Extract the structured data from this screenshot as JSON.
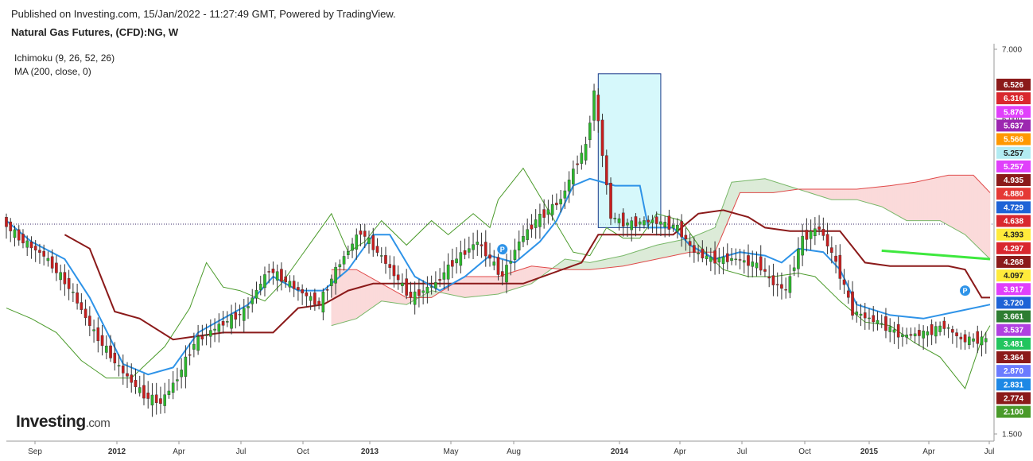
{
  "header": {
    "published": "Published on Investing.com, 15/Jan/2022 - 11:27:49 GMT, Powered by TradingView.",
    "title": "Natural Gas Futures, (CFD):NG, W"
  },
  "indicators": [
    "Ichimoku (9, 26, 52, 26)",
    "MA (200, close, 0)"
  ],
  "logo": {
    "brand": "Investing",
    "suffix": ".com"
  },
  "colors": {
    "up": "#2db82d",
    "down": "#c81e1e",
    "conversion": "#2e93e8",
    "base": "#8b1a1a",
    "lagging": "#4a9a2a",
    "cloud_bull": "#dcebd8",
    "cloud_bear": "#fbdada",
    "highlight": "#c8f6fa",
    "ma": "#3ee83e"
  },
  "chart_data": {
    "type": "candlestick",
    "series_name": "Natural Gas Futures, (CFD):NG, W",
    "x_tick_labels": [
      "Sep",
      "2012",
      "Apr",
      "Jul",
      "Oct",
      "2013",
      "May",
      "Aug",
      "2014",
      "Apr",
      "Jul",
      "Oct",
      "2015",
      "Apr",
      "Jul"
    ],
    "y_tick_labels": [
      "7.000",
      "6.000",
      "1.500"
    ],
    "ylim": [
      1.5,
      7.0
    ],
    "ohlc_path": [
      [
        0,
        4.55
      ],
      [
        4,
        4.3
      ],
      [
        10,
        4.05
      ],
      [
        16,
        3.6
      ],
      [
        22,
        2.95
      ],
      [
        28,
        2.45
      ],
      [
        34,
        2.05
      ],
      [
        38,
        1.95
      ],
      [
        42,
        2.3
      ],
      [
        46,
        2.8
      ],
      [
        52,
        3.05
      ],
      [
        58,
        3.25
      ],
      [
        64,
        3.85
      ],
      [
        70,
        3.6
      ],
      [
        76,
        3.35
      ],
      [
        80,
        3.85
      ],
      [
        86,
        4.4
      ],
      [
        92,
        3.95
      ],
      [
        98,
        3.45
      ],
      [
        104,
        3.65
      ],
      [
        108,
        3.95
      ],
      [
        114,
        4.25
      ],
      [
        120,
        3.75
      ],
      [
        124,
        4.25
      ],
      [
        128,
        4.55
      ],
      [
        134,
        4.85
      ],
      [
        138,
        5.4
      ],
      [
        140,
        5.6
      ],
      [
        142,
        6.4
      ],
      [
        146,
        4.6
      ],
      [
        150,
        4.5
      ],
      [
        156,
        4.55
      ],
      [
        162,
        4.45
      ],
      [
        166,
        4.1
      ],
      [
        170,
        4.0
      ],
      [
        176,
        4.0
      ],
      [
        182,
        3.9
      ],
      [
        184,
        3.7
      ],
      [
        188,
        3.55
      ],
      [
        192,
        4.3
      ],
      [
        196,
        4.45
      ],
      [
        200,
        3.95
      ],
      [
        204,
        3.25
      ],
      [
        210,
        3.1
      ],
      [
        216,
        2.9
      ],
      [
        222,
        2.95
      ],
      [
        226,
        3.05
      ],
      [
        230,
        2.85
      ],
      [
        236,
        2.85
      ]
    ],
    "conversion_line": [
      [
        0,
        4.55
      ],
      [
        6,
        4.25
      ],
      [
        14,
        4.0
      ],
      [
        20,
        3.45
      ],
      [
        28,
        2.5
      ],
      [
        34,
        2.35
      ],
      [
        40,
        2.45
      ],
      [
        46,
        2.95
      ],
      [
        52,
        3.15
      ],
      [
        58,
        3.35
      ],
      [
        64,
        3.75
      ],
      [
        70,
        3.55
      ],
      [
        76,
        3.55
      ],
      [
        82,
        3.85
      ],
      [
        88,
        4.35
      ],
      [
        92,
        4.35
      ],
      [
        98,
        3.75
      ],
      [
        104,
        3.55
      ],
      [
        110,
        3.75
      ],
      [
        116,
        4.05
      ],
      [
        122,
        3.95
      ],
      [
        128,
        4.25
      ],
      [
        132,
        4.55
      ],
      [
        136,
        5.05
      ],
      [
        140,
        5.15
      ],
      [
        146,
        5.05
      ],
      [
        152,
        5.05
      ],
      [
        154,
        4.45
      ],
      [
        160,
        4.45
      ],
      [
        164,
        4.2
      ],
      [
        170,
        4.0
      ],
      [
        176,
        4.1
      ],
      [
        182,
        4.05
      ],
      [
        186,
        3.95
      ],
      [
        190,
        4.15
      ],
      [
        196,
        4.1
      ],
      [
        200,
        3.85
      ],
      [
        204,
        3.35
      ],
      [
        212,
        3.2
      ],
      [
        220,
        3.15
      ],
      [
        228,
        3.25
      ],
      [
        236,
        3.35
      ]
    ],
    "base_line": [
      [
        14,
        4.35
      ],
      [
        20,
        4.15
      ],
      [
        26,
        3.25
      ],
      [
        32,
        3.15
      ],
      [
        40,
        2.85
      ],
      [
        46,
        2.9
      ],
      [
        52,
        2.95
      ],
      [
        58,
        2.95
      ],
      [
        64,
        2.95
      ],
      [
        70,
        3.3
      ],
      [
        76,
        3.35
      ],
      [
        82,
        3.55
      ],
      [
        88,
        3.65
      ],
      [
        100,
        3.65
      ],
      [
        112,
        3.65
      ],
      [
        124,
        3.65
      ],
      [
        138,
        3.95
      ],
      [
        142,
        4.35
      ],
      [
        150,
        4.35
      ],
      [
        160,
        4.35
      ],
      [
        166,
        4.65
      ],
      [
        172,
        4.7
      ],
      [
        178,
        4.6
      ],
      [
        182,
        4.45
      ],
      [
        188,
        4.4
      ],
      [
        196,
        4.4
      ],
      [
        200,
        4.4
      ],
      [
        206,
        3.95
      ],
      [
        212,
        3.9
      ],
      [
        218,
        3.9
      ],
      [
        226,
        3.9
      ],
      [
        230,
        3.85
      ],
      [
        234,
        3.45
      ],
      [
        236,
        3.45
      ]
    ],
    "lagging_span": [
      [
        0,
        3.3
      ],
      [
        6,
        3.15
      ],
      [
        12,
        2.95
      ],
      [
        18,
        2.55
      ],
      [
        24,
        2.3
      ],
      [
        30,
        2.3
      ],
      [
        38,
        2.75
      ],
      [
        44,
        3.3
      ],
      [
        48,
        3.95
      ],
      [
        52,
        3.6
      ],
      [
        56,
        3.55
      ],
      [
        62,
        3.4
      ],
      [
        66,
        3.65
      ],
      [
        72,
        4.15
      ],
      [
        78,
        4.65
      ],
      [
        82,
        4.1
      ],
      [
        86,
        4.25
      ],
      [
        90,
        4.55
      ],
      [
        96,
        4.2
      ],
      [
        102,
        4.55
      ],
      [
        106,
        4.35
      ],
      [
        112,
        4.65
      ],
      [
        116,
        4.45
      ],
      [
        118,
        4.85
      ],
      [
        124,
        5.3
      ],
      [
        130,
        4.7
      ],
      [
        136,
        4.1
      ],
      [
        140,
        4.05
      ],
      [
        144,
        4.45
      ],
      [
        148,
        4.3
      ],
      [
        152,
        4.3
      ],
      [
        156,
        4.65
      ],
      [
        162,
        4.55
      ],
      [
        166,
        4.2
      ],
      [
        172,
        3.85
      ],
      [
        178,
        3.75
      ],
      [
        184,
        3.75
      ],
      [
        190,
        3.8
      ],
      [
        194,
        3.75
      ],
      [
        200,
        3.4
      ],
      [
        206,
        3.1
      ],
      [
        212,
        3.05
      ],
      [
        218,
        2.8
      ],
      [
        224,
        2.6
      ],
      [
        230,
        2.15
      ],
      [
        234,
        2.85
      ],
      [
        236,
        3.05
      ]
    ],
    "cloud_span_a": [
      [
        78,
        3.05
      ],
      [
        84,
        3.15
      ],
      [
        90,
        3.4
      ],
      [
        96,
        3.35
      ],
      [
        102,
        3.55
      ],
      [
        110,
        3.45
      ],
      [
        118,
        3.5
      ],
      [
        126,
        3.65
      ],
      [
        134,
        4.0
      ],
      [
        140,
        3.95
      ],
      [
        148,
        4.05
      ],
      [
        156,
        4.2
      ],
      [
        164,
        4.3
      ],
      [
        170,
        4.45
      ],
      [
        174,
        5.1
      ],
      [
        182,
        5.15
      ],
      [
        190,
        5.0
      ],
      [
        198,
        4.85
      ],
      [
        204,
        4.85
      ],
      [
        210,
        4.75
      ],
      [
        216,
        4.55
      ],
      [
        224,
        4.55
      ],
      [
        230,
        4.35
      ],
      [
        236,
        4.0
      ]
    ],
    "cloud_span_b": [
      [
        78,
        3.85
      ],
      [
        84,
        3.85
      ],
      [
        90,
        3.65
      ],
      [
        96,
        3.45
      ],
      [
        102,
        3.45
      ],
      [
        110,
        3.75
      ],
      [
        118,
        3.75
      ],
      [
        126,
        3.9
      ],
      [
        134,
        3.85
      ],
      [
        140,
        3.85
      ],
      [
        148,
        3.9
      ],
      [
        156,
        4.0
      ],
      [
        164,
        4.1
      ],
      [
        170,
        4.1
      ],
      [
        176,
        4.95
      ],
      [
        184,
        4.95
      ],
      [
        190,
        5.0
      ],
      [
        196,
        5.0
      ],
      [
        204,
        5.0
      ],
      [
        212,
        5.05
      ],
      [
        218,
        5.1
      ],
      [
        226,
        5.2
      ],
      [
        232,
        5.2
      ],
      [
        236,
        4.95
      ]
    ],
    "ma_200": [
      [
        210,
        4.12
      ],
      [
        236,
        4.0
      ]
    ],
    "highlight_range": {
      "x": [
        142,
        157
      ],
      "y": [
        4.45,
        6.65
      ]
    },
    "reference_line": 4.5,
    "markers": [
      {
        "label": "P",
        "index": 119,
        "value": 4.14
      },
      {
        "label": "P",
        "index": 230,
        "value": 3.55
      }
    ],
    "price_tags": [
      {
        "value": "6.526",
        "color": "#8b1a1a"
      },
      {
        "value": "6.316",
        "color": "#d9272e"
      },
      {
        "value": "5.876",
        "color": "#e040fb"
      },
      {
        "value": "5.637",
        "color": "#9c27b0"
      },
      {
        "value": "5.566",
        "color": "#ff9800"
      },
      {
        "value": "5.257",
        "color": "#b2ebf2"
      },
      {
        "value": "5.257",
        "color": "#e040fb"
      },
      {
        "value": "4.935",
        "color": "#8b1a1a"
      },
      {
        "value": "4.880",
        "color": "#e53935"
      },
      {
        "value": "4.729",
        "color": "#1e63d6"
      },
      {
        "value": "4.638",
        "color": "#d9272e"
      },
      {
        "value": "4.393",
        "color": "#ffeb3b"
      },
      {
        "value": "4.297",
        "color": "#d9272e"
      },
      {
        "value": "4.268",
        "color": "#8b1a1a"
      },
      {
        "value": "4.097",
        "color": "#ffeb3b"
      },
      {
        "value": "3.917",
        "color": "#e040fb"
      },
      {
        "value": "3.720",
        "color": "#1e63d6"
      },
      {
        "value": "3.661",
        "color": "#2e7d32"
      },
      {
        "value": "3.537",
        "color": "#b040e0"
      },
      {
        "value": "3.481",
        "color": "#22c55e"
      },
      {
        "value": "3.364",
        "color": "#8b1a1a"
      },
      {
        "value": "2.870",
        "color": "#6b7bff"
      },
      {
        "value": "2.831",
        "color": "#1e88e5"
      },
      {
        "value": "2.774",
        "color": "#8b1a1a"
      },
      {
        "value": "2.100",
        "color": "#4a9a2a"
      }
    ]
  }
}
